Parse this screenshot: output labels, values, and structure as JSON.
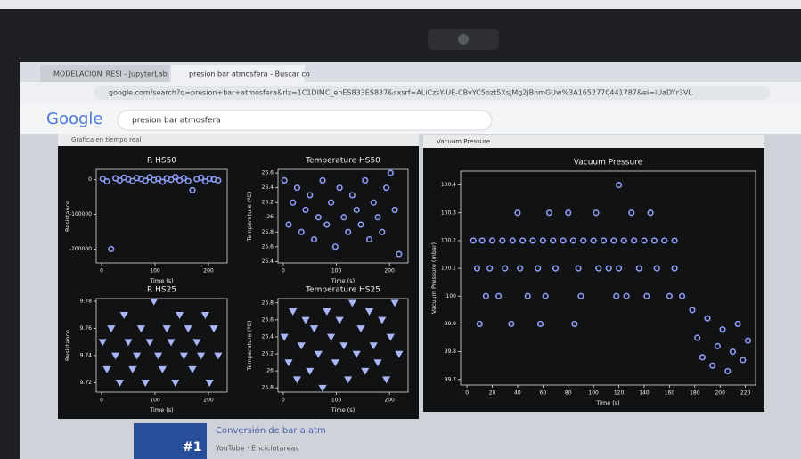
{
  "browser": {
    "tabs": [
      "MODELACION_RESI - JupyterLab",
      "presion bar atmosfera - Buscar co"
    ],
    "url": "google.com/search?q=presion+bar+atmosfera&rlz=1C1DIMC_enES833ES837&sxsrf=ALiCzsY-UE-CBvYC5ozt5XsJMg2jBnmGUw%3A1652770441787&ei=iUaDYr3VL",
    "logo": "Google",
    "search": "presion bar atmosfera"
  },
  "windows": [
    {
      "title": "Grafica en tiempo real"
    },
    {
      "title": "Vacuum Pressure"
    }
  ],
  "result": {
    "thumbnail": "#1",
    "title": "Conversión de bar a atm",
    "source": "YouTube · Enciclotareas"
  },
  "chart_data": [
    {
      "type": "scatter",
      "title": "R HS50",
      "x_label": "Time (s)",
      "y_label": "Resistance",
      "marker": "circle",
      "xlim": [
        -10,
        235
      ],
      "xticks": [
        0,
        100,
        200
      ],
      "ylim": [
        -240000,
        30000
      ],
      "yticks": [
        0,
        -100000,
        -200000
      ],
      "series": [
        {
          "color": "#8c9cf5",
          "x": [
            2,
            10,
            18,
            26,
            34,
            42,
            50,
            58,
            66,
            74,
            82,
            90,
            98,
            106,
            114,
            122,
            130,
            138,
            146,
            154,
            162,
            170,
            178,
            186,
            194,
            202,
            210,
            218
          ],
          "y": [
            3000,
            -5000,
            -200000,
            4000,
            -2000,
            6000,
            1000,
            -4000,
            5000,
            2000,
            -3000,
            7000,
            -1000,
            3000,
            -6000,
            4000,
            0,
            8000,
            -2000,
            5000,
            -4000,
            -30000,
            2000,
            6000,
            -5000,
            3000,
            1000,
            -2000
          ]
        }
      ]
    },
    {
      "type": "scatter",
      "title": "Temperature HS50",
      "x_label": "Time (s)",
      "y_label": "Temperature (ºC)",
      "marker": "circle",
      "xlim": [
        -10,
        235
      ],
      "xticks": [
        0,
        100,
        200
      ],
      "ylim": [
        25.38,
        26.65
      ],
      "yticks": [
        25.4,
        25.6,
        25.8,
        26,
        26.2,
        26.4,
        26.6
      ],
      "series": [
        {
          "color": "#8c9cf5",
          "x": [
            2,
            10,
            18,
            26,
            34,
            42,
            50,
            58,
            66,
            74,
            82,
            90,
            98,
            106,
            114,
            122,
            130,
            138,
            146,
            154,
            162,
            170,
            178,
            186,
            194,
            202,
            210,
            218
          ],
          "y": [
            26.5,
            25.9,
            26.2,
            26.4,
            25.8,
            26.1,
            26.3,
            25.7,
            26.0,
            26.5,
            25.9,
            26.2,
            25.6,
            26.4,
            26.0,
            25.8,
            26.3,
            26.1,
            25.9,
            26.5,
            25.7,
            26.2,
            26.0,
            25.8,
            26.4,
            26.6,
            26.1,
            25.5
          ]
        }
      ]
    },
    {
      "type": "scatter",
      "title": "R HS25",
      "x_label": "Time (s)",
      "y_label": "Resistance",
      "marker": "triangle",
      "xlim": [
        -10,
        235
      ],
      "xticks": [
        0,
        100,
        200
      ],
      "ylim": [
        9.713,
        9.782
      ],
      "yticks": [
        9.72,
        9.74,
        9.76,
        9.78
      ],
      "series": [
        {
          "color": "#a9b6f7",
          "x": [
            2,
            10,
            18,
            26,
            34,
            42,
            50,
            58,
            66,
            74,
            82,
            90,
            98,
            106,
            114,
            122,
            130,
            138,
            146,
            154,
            162,
            170,
            178,
            186,
            194,
            202,
            210,
            218
          ],
          "y": [
            9.75,
            9.73,
            9.76,
            9.74,
            9.72,
            9.77,
            9.75,
            9.73,
            9.74,
            9.76,
            9.72,
            9.75,
            9.78,
            9.74,
            9.73,
            9.76,
            9.75,
            9.72,
            9.77,
            9.74,
            9.76,
            9.73,
            9.75,
            9.74,
            9.77,
            9.72,
            9.76,
            9.74
          ]
        }
      ]
    },
    {
      "type": "scatter",
      "title": "Temperature HS25",
      "x_label": "Time (s)",
      "y_label": "Temperature (ºC)",
      "marker": "triangle",
      "xlim": [
        -10,
        235
      ],
      "xticks": [
        0,
        100,
        200
      ],
      "ylim": [
        25.75,
        26.85
      ],
      "yticks": [
        25.8,
        26,
        26.2,
        26.4,
        26.6,
        26.8
      ],
      "series": [
        {
          "color": "#a9b6f7",
          "x": [
            2,
            10,
            18,
            26,
            34,
            42,
            50,
            58,
            66,
            74,
            82,
            90,
            98,
            106,
            114,
            122,
            130,
            138,
            146,
            154,
            162,
            170,
            178,
            186,
            194,
            202,
            210,
            218
          ],
          "y": [
            26.4,
            26.1,
            26.7,
            25.9,
            26.3,
            26.6,
            26.0,
            26.5,
            26.2,
            25.8,
            26.7,
            26.4,
            26.1,
            26.6,
            26.3,
            25.9,
            26.8,
            26.2,
            26.5,
            26.0,
            26.7,
            26.3,
            26.1,
            26.6,
            25.9,
            26.4,
            26.8,
            26.2
          ]
        }
      ]
    },
    {
      "type": "scatter",
      "title": "Vacuum Pressure",
      "x_label": "Time (s)",
      "y_label": "Vacuum Pressure (mbar)",
      "marker": "circle",
      "xlim": [
        -5,
        228
      ],
      "xticks": [
        0,
        20,
        40,
        60,
        80,
        100,
        120,
        140,
        160,
        180,
        200,
        220
      ],
      "ylim": [
        99.68,
        100.45
      ],
      "yticks": [
        99.7,
        99.8,
        99.9,
        100,
        100.1,
        100.2,
        100.3,
        100.4
      ],
      "series": [
        {
          "color": "#8c9cf5",
          "x": [
            5,
            12,
            20,
            28,
            36,
            44,
            52,
            60,
            68,
            76,
            84,
            92,
            100,
            108,
            116,
            124,
            132,
            140,
            148,
            156,
            164,
            8,
            18,
            30,
            42,
            56,
            70,
            88,
            104,
            112,
            120,
            136,
            150,
            164,
            15,
            25,
            48,
            62,
            90,
            118,
            126,
            142,
            160,
            170,
            40,
            65,
            80,
            102,
            130,
            145,
            120,
            10,
            35,
            58,
            85,
            178,
            182,
            186,
            190,
            194,
            198,
            202,
            206,
            210,
            214,
            218,
            222
          ],
          "y": [
            100.2,
            100.2,
            100.2,
            100.2,
            100.2,
            100.2,
            100.2,
            100.2,
            100.2,
            100.2,
            100.2,
            100.2,
            100.2,
            100.2,
            100.2,
            100.2,
            100.2,
            100.2,
            100.2,
            100.2,
            100.2,
            100.1,
            100.1,
            100.1,
            100.1,
            100.1,
            100.1,
            100.1,
            100.1,
            100.1,
            100.1,
            100.1,
            100.1,
            100.1,
            100,
            100,
            100,
            100,
            100,
            100,
            100,
            100,
            100,
            100,
            100.3,
            100.3,
            100.3,
            100.3,
            100.3,
            100.3,
            100.4,
            99.9,
            99.9,
            99.9,
            99.9,
            99.95,
            99.85,
            99.78,
            99.92,
            99.75,
            99.82,
            99.88,
            99.73,
            99.8,
            99.9,
            99.77,
            99.84
          ]
        }
      ]
    }
  ]
}
